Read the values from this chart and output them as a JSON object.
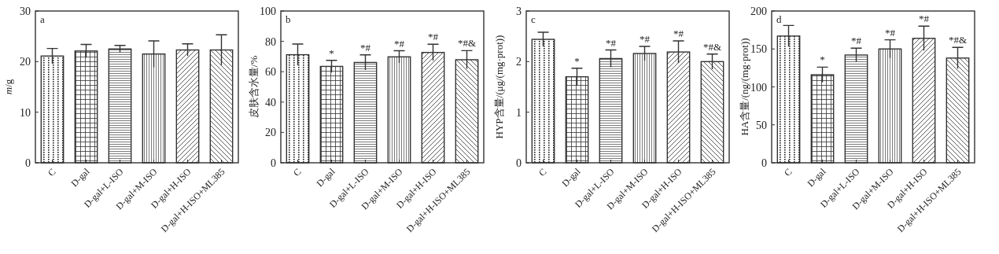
{
  "chart_data": [
    {
      "type": "bar",
      "categories": [
        "C",
        "D-gal",
        "D-gal+L-ISO",
        "D-gal+M-ISO",
        "D-gal+H-ISO",
        "D-gal+H-ISO+ML385"
      ],
      "ylabel": "*m*/g",
      "ylim": [
        0,
        30
      ],
      "yticks": [
        0,
        10,
        20,
        30
      ],
      "values": [
        21.1,
        22.1,
        22.5,
        21.5,
        22.3,
        22.3
      ],
      "errors": [
        1.5,
        1.3,
        0.7,
        2.6,
        1.2,
        3.0
      ],
      "annotations": [
        "a"
      ]
    },
    {
      "type": "bar",
      "categories": [
        "C",
        "D-gal",
        "D-gal+L-ISO",
        "D-gal+M-ISO",
        "D-gal+H-ISO",
        "D-gal+H-ISO+ML385"
      ],
      "ylabel": "皮肤含水量/%",
      "ylim": [
        0,
        100
      ],
      "yticks": [
        0,
        20,
        40,
        60,
        80,
        100
      ],
      "values": [
        71.2,
        63.5,
        66.1,
        69.8,
        72.7,
        67.9
      ],
      "errors": [
        7,
        4,
        5,
        4,
        5.4,
        6
      ],
      "annotations": [
        "b",
        {
          "text": "*",
          "x": "D-gal",
          "y": 67.5
        },
        {
          "text": "*#",
          "x": "D-gal+L-ISO",
          "y": 71.1
        },
        {
          "text": "*#",
          "x": "D-gal+M-ISO",
          "y": 73.8
        },
        {
          "text": "*#",
          "x": "D-gal+H-ISO",
          "y": 78.1
        },
        {
          "text": "*#&",
          "x": "D-gal+H-ISO+ML385",
          "y": 73.9
        }
      ]
    },
    {
      "type": "bar",
      "categories": [
        "C",
        "D-gal",
        "D-gal+L-ISO",
        "D-gal+M-ISO",
        "D-gal+H-ISO",
        "D-gal+H-ISO+ML385"
      ],
      "ylabel": "HYP含量/(μg/(mg·prot))",
      "ylim": [
        0,
        3
      ],
      "yticks": [
        0,
        1,
        2,
        3
      ],
      "values": [
        2.44,
        1.7,
        2.06,
        2.16,
        2.19,
        2.0
      ],
      "errors": [
        0.14,
        0.17,
        0.17,
        0.14,
        0.22,
        0.15
      ],
      "annotations": [
        "c",
        {
          "text": "*",
          "x": "D-gal",
          "y": 1.87
        },
        {
          "text": "*#",
          "x": "D-gal+L-ISO",
          "y": 2.23
        },
        {
          "text": "*#",
          "x": "D-gal+M-ISO",
          "y": 2.3
        },
        {
          "text": "*#",
          "x": "D-gal+H-ISO",
          "y": 2.41
        },
        {
          "text": "*#&",
          "x": "D-gal+H-ISO+ML385",
          "y": 2.15
        }
      ]
    },
    {
      "type": "bar",
      "categories": [
        "C",
        "D-gal",
        "D-gal+L-ISO",
        "D-gal+M-ISO",
        "D-gal+H-ISO",
        "D-gal+H-ISO+ML385"
      ],
      "ylabel": "HA含量/(ng/(mg·prot))",
      "ylim": [
        0,
        200
      ],
      "yticks": [
        0,
        50,
        100,
        150,
        200
      ],
      "values": [
        167,
        116,
        142,
        150,
        164,
        138
      ],
      "errors": [
        14,
        10,
        9,
        12,
        16,
        14
      ],
      "annotations": [
        "d",
        {
          "text": "*",
          "x": "D-gal",
          "y": 126
        },
        {
          "text": "*#",
          "x": "D-gal+L-ISO",
          "y": 151
        },
        {
          "text": "*#",
          "x": "D-gal+M-ISO",
          "y": 162
        },
        {
          "text": "*#",
          "x": "D-gal+H-ISO",
          "y": 180
        },
        {
          "text": "*#&",
          "x": "D-gal+H-ISO+ML385",
          "y": 152
        }
      ]
    }
  ]
}
